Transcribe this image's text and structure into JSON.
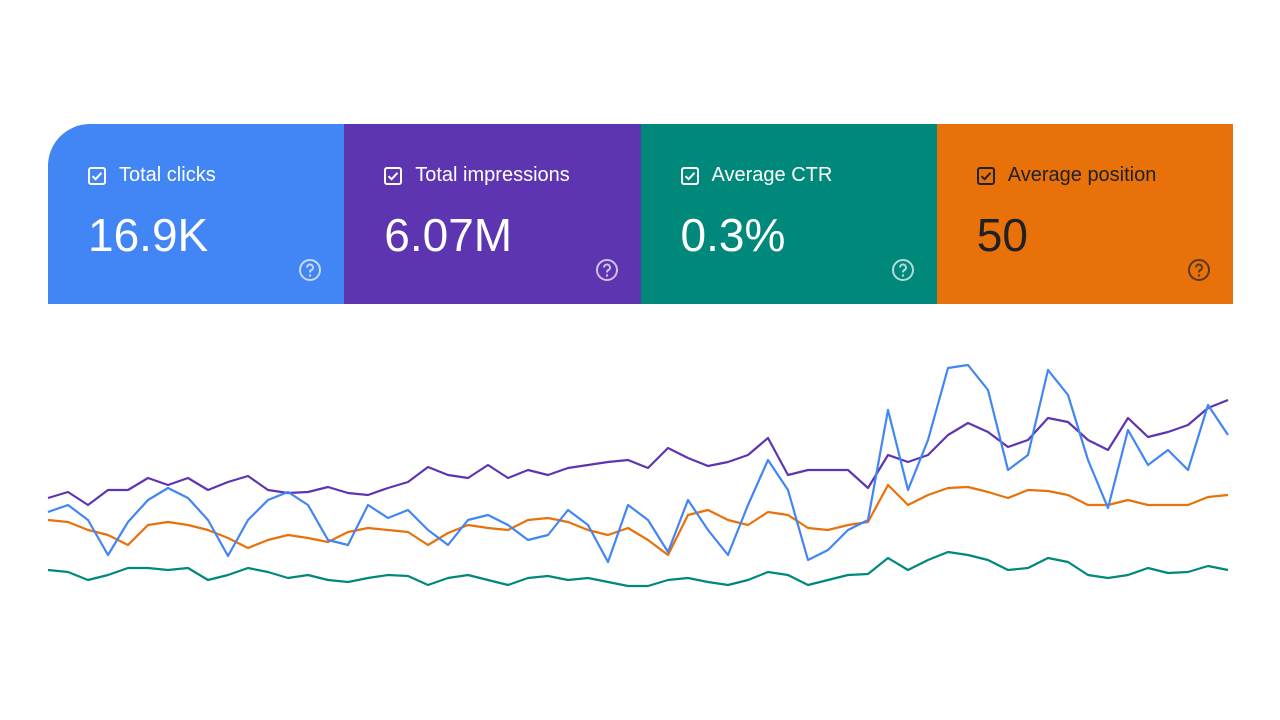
{
  "cards": [
    {
      "label": "Total clicks",
      "value": "16.9K",
      "color": "#4285f4",
      "text_color": "#ffffff"
    },
    {
      "label": "Total impressions",
      "value": "6.07M",
      "color": "#5e35b1",
      "text_color": "#ffffff"
    },
    {
      "label": "Average CTR",
      "value": "0.3%",
      "color": "#00897b",
      "text_color": "#ffffff"
    },
    {
      "label": "Average position",
      "value": "50",
      "color": "#e8710a",
      "text_color": "#202124"
    }
  ],
  "chart_data": {
    "type": "line",
    "ylim": [
      0,
      100
    ],
    "series": [
      {
        "color": "#5e35b1",
        "values": [
          40.8,
          43.2,
          38,
          44,
          44,
          48.8,
          46,
          48.8,
          44,
          47.2,
          49.6,
          44,
          42.8,
          43.2,
          45.2,
          42.8,
          42,
          44.8,
          47.2,
          53.2,
          50,
          48.8,
          54,
          48.8,
          52,
          50,
          52.8,
          54,
          55.2,
          56,
          52.8,
          60.8,
          56.8,
          53.6,
          55.2,
          58,
          64.8,
          50,
          52,
          52,
          52,
          44.8,
          58,
          55.2,
          58,
          66,
          70.8,
          67.2,
          61.2,
          64,
          72.8,
          71.2,
          64,
          60,
          72.8,
          65.2,
          67.2,
          70,
          76.8,
          80
        ]
      },
      {
        "color": "#e8710a",
        "values": [
          32,
          31.2,
          28,
          26,
          22,
          30,
          31.2,
          30,
          28,
          24.8,
          20.8,
          24,
          26,
          24.8,
          23.2,
          27.2,
          28.8,
          28,
          27.2,
          22,
          26.8,
          30,
          28.8,
          28,
          32,
          32.8,
          31.2,
          28,
          26,
          28.8,
          24,
          18,
          34,
          36,
          32,
          30,
          35.2,
          34,
          28.8,
          28,
          30,
          31.2,
          46,
          38,
          42,
          44.8,
          45.2,
          43.2,
          40.8,
          44,
          43.6,
          42,
          38,
          38,
          40,
          38,
          38,
          38,
          41.2,
          42
        ]
      },
      {
        "color": "#00897b",
        "values": [
          12,
          11.2,
          8,
          10,
          12.8,
          12.8,
          12,
          12.8,
          8,
          10,
          12.8,
          11.2,
          8.8,
          10,
          8,
          7.2,
          8.8,
          10,
          9.6,
          6,
          8.8,
          10,
          8,
          6,
          8.8,
          9.6,
          8,
          8.8,
          7.2,
          5.6,
          5.6,
          8,
          8.8,
          7.2,
          6,
          8,
          11.2,
          10,
          6,
          8,
          10,
          10.4,
          16.8,
          12,
          16,
          19.2,
          18,
          16,
          12,
          12.8,
          16.8,
          15.2,
          10,
          8.8,
          10,
          12.8,
          10.8,
          11.2,
          13.6,
          12
        ]
      },
      {
        "color": "#4285f4",
        "values": [
          35.2,
          38,
          32,
          18,
          31.2,
          40,
          44.8,
          40.8,
          32,
          17.6,
          32,
          40,
          43.2,
          38,
          24,
          22,
          38,
          32.8,
          36,
          28,
          22,
          32,
          34,
          30,
          24,
          26,
          36,
          30,
          15.2,
          38,
          32,
          19.2,
          40,
          28,
          18,
          38,
          56,
          44,
          16,
          20,
          28,
          32,
          76,
          44,
          64,
          92.8,
          94,
          84,
          52,
          58,
          92,
          82,
          56,
          36.8,
          68,
          54,
          60,
          52,
          78,
          66
        ]
      }
    ]
  }
}
